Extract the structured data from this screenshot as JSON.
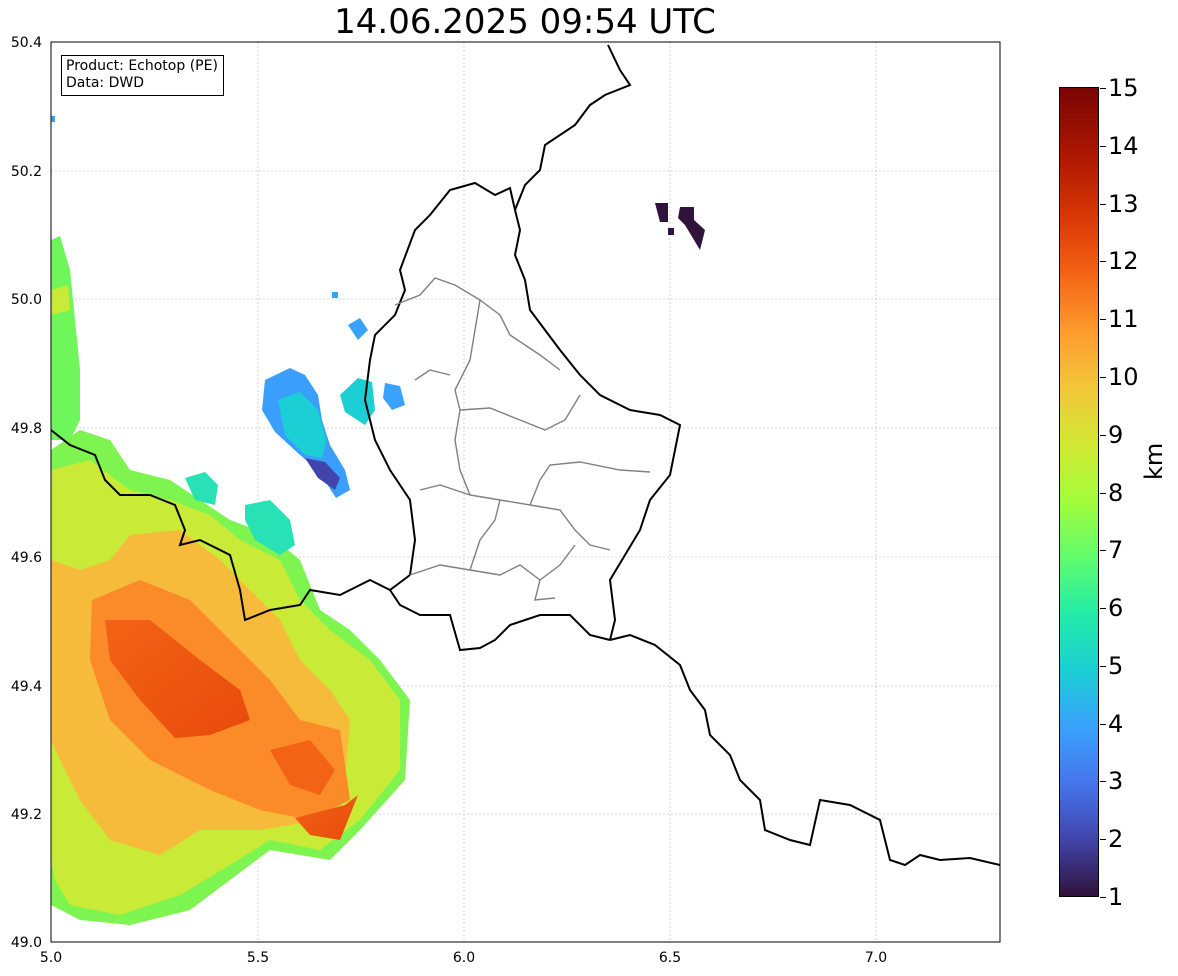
{
  "title": "14.06.2025 09:54 UTC",
  "info": {
    "product": "Product: Echotop (PE)",
    "data_source": "Data: DWD"
  },
  "map": {
    "x_ticks": [
      "5.0",
      "5.5",
      "6.0",
      "6.5",
      "7.0"
    ],
    "y_ticks": [
      "49.0",
      "49.2",
      "49.4",
      "49.6",
      "49.8",
      "50.0",
      "50.2",
      "50.4"
    ],
    "lon_range": [
      5.0,
      7.3
    ],
    "lat_range": [
      49.0,
      50.4
    ],
    "grid": true
  },
  "colorbar": {
    "unit": "km",
    "range": [
      1,
      15
    ],
    "ticks": [
      "1",
      "2",
      "3",
      "4",
      "5",
      "6",
      "7",
      "8",
      "9",
      "10",
      "11",
      "12",
      "13",
      "14",
      "15"
    ],
    "colormap": "turbo"
  },
  "colors": {
    "border": "#000000",
    "district": "#808080",
    "grid": "#c8c8c8"
  }
}
